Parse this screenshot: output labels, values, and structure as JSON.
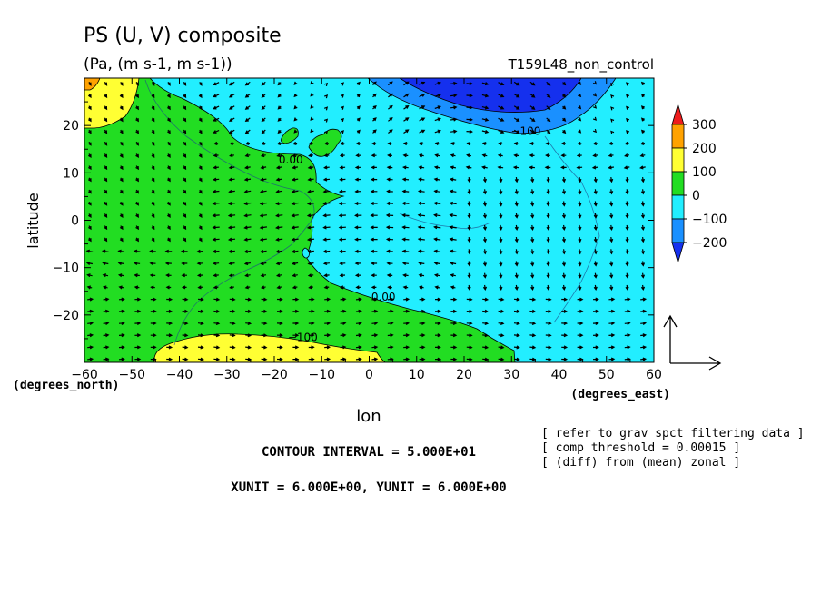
{
  "chart_data": {
    "type": "heatmap",
    "title": "PS (U, V) composite",
    "subtitle": "(Pa, (m s-1, m s-1))",
    "run_label": "T159L48_non_control",
    "xlabel": "lon",
    "ylabel": "latitude",
    "x_unit": "(degrees_east)",
    "y_unit": "(degrees_north)",
    "xlim": [
      -60,
      60
    ],
    "ylim": [
      -30,
      30
    ],
    "x_ticks": [
      -60,
      -50,
      -40,
      -30,
      -20,
      -10,
      0,
      10,
      20,
      30,
      40,
      50,
      60
    ],
    "y_ticks": [
      -20,
      -10,
      0,
      10,
      20
    ],
    "colorbar": {
      "labels": [
        "300",
        "200",
        "100",
        "0",
        "−100",
        "−200"
      ],
      "colors": [
        "#ee1c1c",
        "#ffa200",
        "#ffff33",
        "#22dd22",
        "#22eeff",
        "#1a90ff",
        "#1530ee"
      ]
    },
    "contour_labels": [
      {
        "text": "0.00",
        "lon": -16.5,
        "lat": 12
      },
      {
        "text": "0.00",
        "lon": 3,
        "lat": -17
      },
      {
        "text": "−100",
        "lon": -14,
        "lat": -25.5
      },
      {
        "text": "−100",
        "lon": 33,
        "lat": 18
      }
    ],
    "notes": [
      "[ refer to grav spct filtering data ]",
      "[ comp threshold = 0.00015 ]",
      "[ (diff) from (mean) zonal ]"
    ],
    "contour_interval": "CONTOUR INTERVAL = 5.000E+01",
    "units_line": "XUNIT = 6.000E+00, YUNIT = 6.000E+00"
  },
  "colors": {
    "green": "#22dd22",
    "cyan": "#22eeff",
    "yellow": "#ffff33",
    "orange": "#ffa200",
    "blue_mid": "#1a90ff",
    "blue_dark": "#1530ee"
  }
}
